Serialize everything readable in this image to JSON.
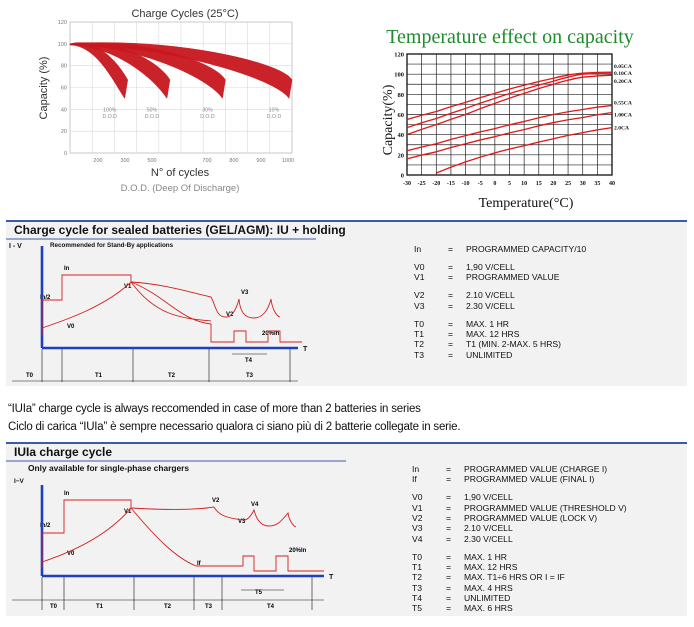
{
  "chart_data": [
    {
      "type": "area",
      "title": "Charge Cycles (25°C)",
      "xlabel": "N° of cycles",
      "ylabel": "Capacity (%)",
      "caption": "D.O.D. (Deep Of Discharge)",
      "xlim": [
        0,
        1000
      ],
      "ylim": [
        0,
        120
      ],
      "xticks": [
        "200",
        "300",
        "500",
        "700",
        "800",
        "900",
        "1000"
      ],
      "yticks": [
        "120",
        "100",
        "80",
        "60",
        "40",
        "20",
        "0"
      ],
      "grid": true,
      "series": [
        {
          "name": "100%",
          "label": [
            "100%",
            "D.O.D"
          ],
          "end_x": 260
        },
        {
          "name": "50%",
          "label": [
            "50%",
            "D.O.D"
          ],
          "end_x": 450
        },
        {
          "name": "30%",
          "label": [
            "30%",
            "D.O.D"
          ],
          "end_x": 700
        },
        {
          "name": "10%",
          "label": [
            "10%",
            "D.O.D"
          ],
          "end_x": 1000
        }
      ]
    },
    {
      "type": "line",
      "title": "Temperature effect on capacity",
      "xlabel": "Temperature(°C)",
      "ylabel": "Capacity(%)",
      "xlim": [
        -30,
        40
      ],
      "ylim": [
        0,
        120
      ],
      "xticks": [
        "-30",
        "-25",
        "-20",
        "-15",
        "-10",
        "-5",
        "0",
        "5",
        "10",
        "15",
        "20",
        "25",
        "30",
        "35",
        "40"
      ],
      "yticks": [
        "120",
        "100",
        "80",
        "60",
        "40",
        "20",
        "0"
      ],
      "grid": true,
      "series": [
        {
          "name": "0.05CA",
          "x": [
            -30,
            -20,
            -10,
            0,
            10,
            20,
            25,
            30,
            40
          ],
          "y": [
            55,
            63,
            72,
            81,
            89,
            96,
            99,
            101,
            102
          ]
        },
        {
          "name": "0.10CA",
          "x": [
            -30,
            -20,
            -10,
            0,
            10,
            20,
            25,
            30,
            40
          ],
          "y": [
            47,
            56,
            66,
            76,
            85,
            93,
            97,
            100,
            101
          ]
        },
        {
          "name": "0.20CA",
          "x": [
            -30,
            -20,
            -10,
            0,
            10,
            20,
            25,
            30,
            40
          ],
          "y": [
            40,
            50,
            60,
            71,
            81,
            90,
            94,
            97,
            99
          ]
        },
        {
          "name": "0.55CA",
          "x": [
            -30,
            -20,
            -10,
            0,
            10,
            20,
            30,
            40
          ],
          "y": [
            24,
            31,
            39,
            46,
            53,
            60,
            65,
            69
          ]
        },
        {
          "name": "1.00CA",
          "x": [
            -30,
            -20,
            -10,
            0,
            10,
            20,
            30,
            40
          ],
          "y": [
            16,
            23,
            31,
            38,
            45,
            52,
            57,
            62
          ]
        },
        {
          "name": "2.0CA",
          "x": [
            -20,
            -10,
            0,
            10,
            20,
            30,
            40
          ],
          "y": [
            2,
            13,
            22,
            29,
            36,
            42,
            47
          ]
        }
      ]
    }
  ],
  "iu": {
    "title": "Charge cycle for sealed batteries (GEL/AGM): IU + holding",
    "axis_y": "I - V",
    "axis_x": "T",
    "subtitle": "Recommended for Stand-By applications",
    "labels": {
      "in": "In",
      "in2": "In/2",
      "v0": "V0",
      "v1": "V1",
      "v2": "V2",
      "v3": "V3",
      "pct": "20%In",
      "t4": "T4"
    },
    "phases": [
      "T0",
      "T1",
      "T2",
      "T3"
    ],
    "legend": [
      {
        "k": "In",
        "e": "=",
        "v": "PROGRAMMED CAPACITY/10"
      },
      {
        "gap": true
      },
      {
        "k": "V0",
        "e": "=",
        "v": "1,90 V/CELL"
      },
      {
        "k": "V1",
        "e": "=",
        "v": "PROGRAMMED VALUE"
      },
      {
        "gap": true
      },
      {
        "k": "V2",
        "e": "=",
        "v": "2.10 V/CELL"
      },
      {
        "k": "V3",
        "e": "=",
        "v": "2.30 V/CELL"
      },
      {
        "gap": true
      },
      {
        "k": "T0",
        "e": "=",
        "v": "MAX. 1 HR"
      },
      {
        "k": "T1",
        "e": "=",
        "v": "MAX. 12 HRS"
      },
      {
        "k": "T2",
        "e": "=",
        "v": "T1 (MIN. 2-MAX. 5 HRS)"
      },
      {
        "k": "T3",
        "e": "=",
        "v": "UNLIMITED"
      }
    ]
  },
  "notes": {
    "en": "“IUIa” charge cycle is always reccomended in case of more than 2 batteries in series",
    "it": "Ciclo di carica “IUIa” è sempre necessario qualora ci siano più di 2 batterie collegate in serie."
  },
  "iuia": {
    "title": "IUIa charge cycle",
    "axis_y": "I−V",
    "axis_x": "T",
    "subtitle": "Only available for single-phase chargers",
    "labels": {
      "in": "In",
      "in2": "In/2",
      "v0": "V0",
      "v1": "V1",
      "v2": "V2",
      "v3": "V3",
      "v4": "V4",
      "if": "If",
      "pct": "20%In",
      "t5": "T5",
      "t4": "T4"
    },
    "phases": [
      "T0",
      "T1",
      "T2",
      "T3"
    ],
    "legend": [
      {
        "k": "In",
        "e": "=",
        "v": "PROGRAMMED VALUE (CHARGE I)"
      },
      {
        "k": "If",
        "e": "=",
        "v": "PROGRAMMED VALUE (FINAL I)"
      },
      {
        "gap": true
      },
      {
        "k": "V0",
        "e": "=",
        "v": "1,90 V/CELL"
      },
      {
        "k": "V1",
        "e": "=",
        "v": "PROGRAMMED VALUE (THRESHOLD V)"
      },
      {
        "k": "V2",
        "e": "=",
        "v": "PROGRAMMED VALUE (LOCK V)"
      },
      {
        "k": "V3",
        "e": "=",
        "v": "2.10 V/CELL"
      },
      {
        "k": "V4",
        "e": "=",
        "v": "2.30 V/CELL"
      },
      {
        "gap": true
      },
      {
        "k": "T0",
        "e": "=",
        "v": "MAX. 1 HR"
      },
      {
        "k": "T1",
        "e": "=",
        "v": "MAX. 12 HRS"
      },
      {
        "k": "T2",
        "e": "=",
        "v": "MAX. T1÷6 HRS OR I = IF"
      },
      {
        "k": "T3",
        "e": "=",
        "v": "MAX. 4 HRS"
      },
      {
        "k": "T4",
        "e": "=",
        "v": "UNLIMITED"
      },
      {
        "k": "T5",
        "e": "=",
        "v": "MAX. 6 HRS"
      }
    ]
  },
  "colors": {
    "curve": "#d32020",
    "axis": "#1f3fbf",
    "band": "#3d5aa8",
    "grid": "#cfcfcf",
    "cycles": "#c8171e"
  }
}
